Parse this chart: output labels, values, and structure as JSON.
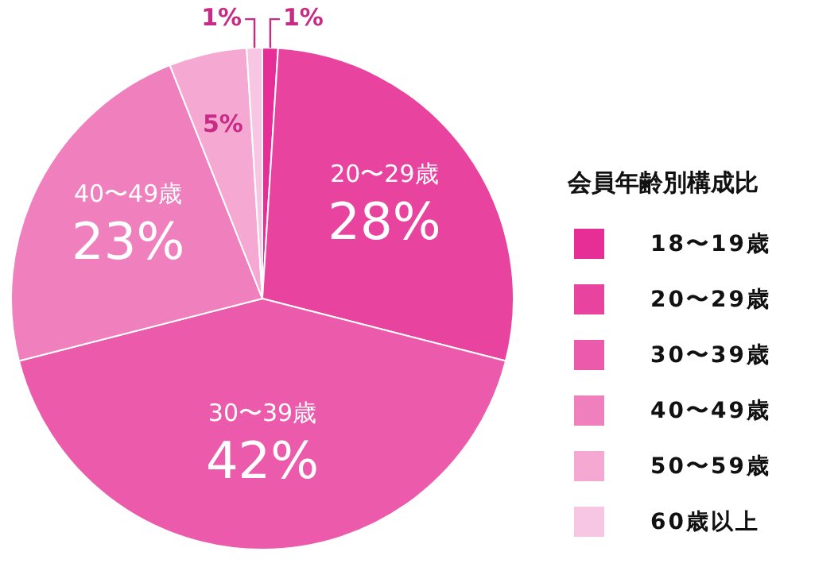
{
  "chart_data": {
    "type": "pie",
    "legend_title": "会員年齢別構成比",
    "categories": [
      "18〜19歳",
      "20〜29歳",
      "30〜39歳",
      "40〜49歳",
      "50〜59歳",
      "60歳以上"
    ],
    "values": [
      1,
      28,
      42,
      23,
      5,
      1
    ],
    "value_labels": [
      "1%",
      "28%",
      "42%",
      "23%",
      "5%",
      "1%"
    ],
    "colors": [
      "#e62e96",
      "#e8449f",
      "#eb5aab",
      "#ef7fbd",
      "#f4a8d2",
      "#f7c6e2"
    ],
    "legend": "right"
  }
}
